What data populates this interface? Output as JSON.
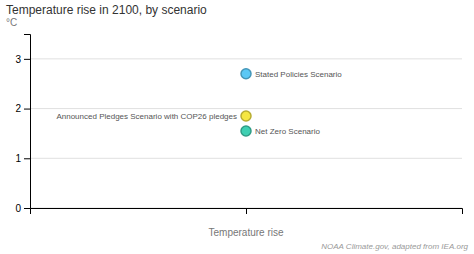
{
  "chart_data": {
    "type": "scatter",
    "title": "Temperature rise in 2100, by scenario",
    "x_label": "Temperature rise",
    "y_label": "°C",
    "annotations": [
      "NOAA Climate.gov, adapted from IEA.org"
    ],
    "categories": [
      null
    ],
    "series": [
      {
        "name": "Stated Policies Scenario",
        "color": "#5bc8f5",
        "values": [
          2.7
        ]
      },
      {
        "name": "Announced Pledges Scenario with COP26 pledges",
        "color": "#f5e642",
        "values": [
          1.85
        ]
      },
      {
        "name": "Net Zero Scenario",
        "color": "#3ecfb2",
        "values": [
          1.55
        ]
      }
    ],
    "ylim": [
      0,
      3.5
    ],
    "yticks": [
      0,
      1,
      2,
      3
    ],
    "grid": true
  }
}
